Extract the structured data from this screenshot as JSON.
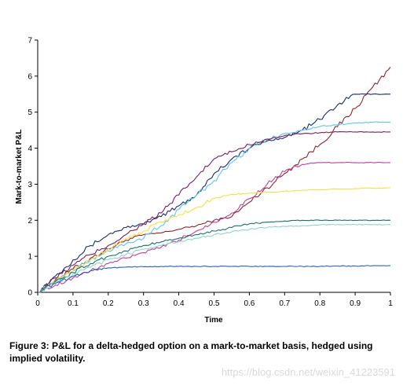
{
  "chart_data": {
    "type": "line",
    "xlabel": "Time",
    "ylabel": "Mark-to-market P&L",
    "xlim": [
      0,
      1
    ],
    "ylim": [
      0,
      7
    ],
    "xticks": [
      "0",
      "0.1",
      "0.2",
      "0.3",
      "0.4",
      "0.5",
      "0.6",
      "0.7",
      "0.8",
      "0.9",
      "1"
    ],
    "yticks": [
      "0",
      "1",
      "2",
      "3",
      "4",
      "5",
      "6",
      "7"
    ],
    "grid": false,
    "legend": "none",
    "x": [
      0,
      0.05,
      0.1,
      0.15,
      0.2,
      0.25,
      0.3,
      0.35,
      0.4,
      0.45,
      0.5,
      0.55,
      0.6,
      0.65,
      0.7,
      0.75,
      0.8,
      0.85,
      0.9,
      0.95,
      1.0
    ],
    "series": [
      {
        "color": "#8b2a2a",
        "values": [
          0,
          0.35,
          0.65,
          0.95,
          1.2,
          1.45,
          1.6,
          1.65,
          1.75,
          1.85,
          2.0,
          2.1,
          2.5,
          2.9,
          3.3,
          3.7,
          4.1,
          4.6,
          5.1,
          5.7,
          6.25
        ]
      },
      {
        "color": "#1a2f6e",
        "values": [
          0,
          0.45,
          0.9,
          1.3,
          1.6,
          1.8,
          1.9,
          2.1,
          2.4,
          2.7,
          3.3,
          3.7,
          4.0,
          4.2,
          4.3,
          4.5,
          4.8,
          5.2,
          5.5,
          5.5,
          5.5
        ]
      },
      {
        "color": "#5fc4e8",
        "values": [
          0,
          0.3,
          0.6,
          0.9,
          1.15,
          1.35,
          1.5,
          1.85,
          2.3,
          2.7,
          3.1,
          3.6,
          4.0,
          4.25,
          4.4,
          4.5,
          4.6,
          4.65,
          4.7,
          4.72,
          4.72
        ]
      },
      {
        "color": "#7a1f5c",
        "values": [
          0,
          0.4,
          0.75,
          1.05,
          1.3,
          1.6,
          1.9,
          2.2,
          2.7,
          3.2,
          3.7,
          3.9,
          4.1,
          4.25,
          4.35,
          4.4,
          4.43,
          4.45,
          4.45,
          4.45,
          4.45
        ]
      },
      {
        "color": "#c040a0",
        "values": [
          0,
          0.2,
          0.4,
          0.6,
          0.8,
          0.95,
          1.1,
          1.25,
          1.45,
          1.7,
          1.95,
          2.2,
          2.6,
          3.0,
          3.35,
          3.55,
          3.6,
          3.6,
          3.6,
          3.6,
          3.6
        ]
      },
      {
        "color": "#f2e04a",
        "values": [
          0,
          0.3,
          0.6,
          0.9,
          1.2,
          1.5,
          1.7,
          1.95,
          2.15,
          2.35,
          2.6,
          2.72,
          2.75,
          2.78,
          2.8,
          2.83,
          2.85,
          2.87,
          2.88,
          2.89,
          2.9
        ]
      },
      {
        "color": "#1f6f6a",
        "values": [
          0,
          0.3,
          0.55,
          0.8,
          1.0,
          1.15,
          1.3,
          1.4,
          1.5,
          1.6,
          1.7,
          1.8,
          1.9,
          1.95,
          1.98,
          2.0,
          2.0,
          2.0,
          2.0,
          2.0,
          2.0
        ]
      },
      {
        "color": "#8fd4c8",
        "values": [
          0,
          0.25,
          0.5,
          0.7,
          0.9,
          1.05,
          1.2,
          1.3,
          1.4,
          1.5,
          1.6,
          1.68,
          1.75,
          1.8,
          1.83,
          1.85,
          1.87,
          1.88,
          1.88,
          1.88,
          1.88
        ]
      },
      {
        "color": "#2e5fb0",
        "values": [
          0,
          0.25,
          0.45,
          0.6,
          0.68,
          0.7,
          0.71,
          0.72,
          0.72,
          0.72,
          0.72,
          0.72,
          0.72,
          0.72,
          0.72,
          0.72,
          0.72,
          0.73,
          0.73,
          0.74,
          0.74
        ]
      }
    ]
  },
  "caption": "Figure 3:  P&L for a delta-hedged option on a mark-to-market basis, hedged using implied volatility.",
  "watermark": "https://blog.csdn.net/weixin_41223591"
}
